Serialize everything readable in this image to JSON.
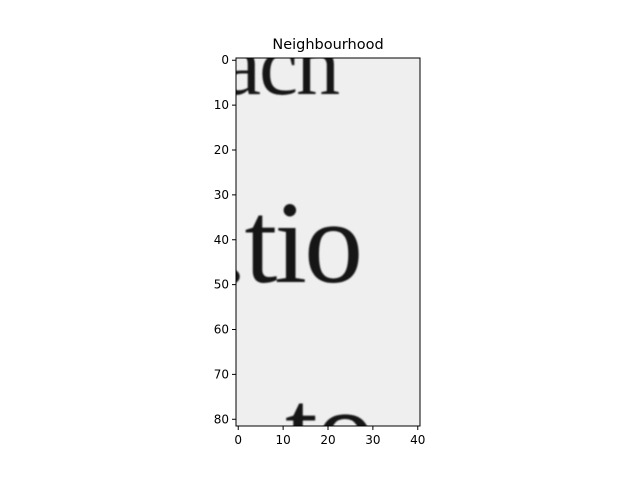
{
  "plot": {
    "title": "Neighbourhood",
    "image": {
      "description": "Grayscale crop of a scanned printed page showing text fragments",
      "visible_text_fragments": [
        "acn",
        "tio",
        "to"
      ],
      "colormap": "gray"
    },
    "x_axis": {
      "range": [
        -0.5,
        40.5
      ],
      "ticks": [
        0,
        10,
        20,
        30,
        40
      ]
    },
    "y_axis": {
      "range": [
        81.5,
        -0.5
      ],
      "inverted": true,
      "ticks": [
        0,
        10,
        20,
        30,
        40,
        50,
        60,
        70,
        80
      ]
    }
  }
}
